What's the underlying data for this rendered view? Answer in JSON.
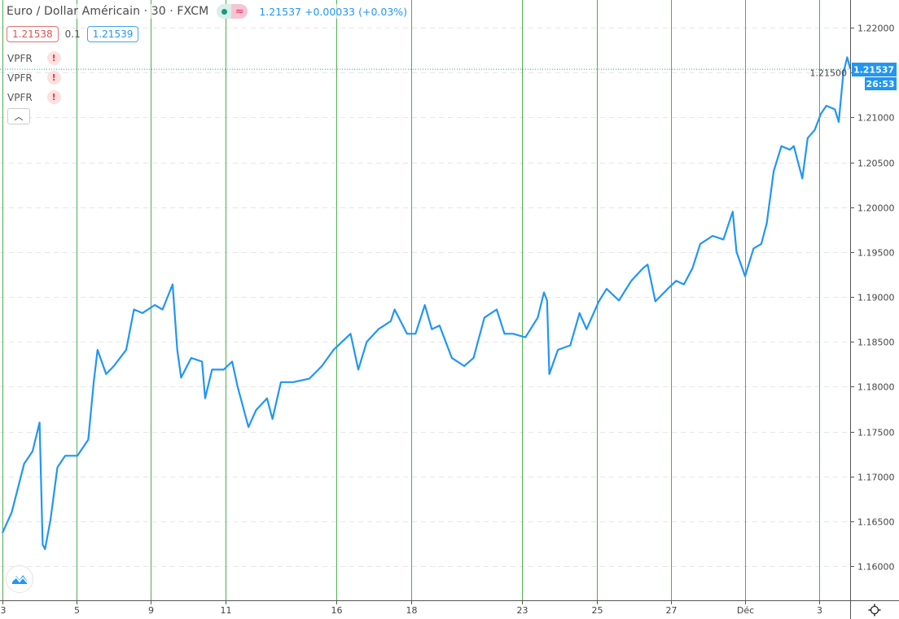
{
  "legend": {
    "title": "Euro / Dollar Américain · 30 · FXCM",
    "status_icon": "market-open-dot",
    "delay_icon": "approx-wave-icon",
    "last": "1.21537",
    "change": "+0.00033 (+0.03%)"
  },
  "quotes": {
    "sell": "1.21538",
    "spread": "0.1",
    "buy": "1.21539"
  },
  "indicators": [
    {
      "name": "VPFR",
      "error": "!"
    },
    {
      "name": "VPFR",
      "error": "!"
    },
    {
      "name": "VPFR",
      "error": "!"
    }
  ],
  "collapse_icon": "chevron-up-icon",
  "last_price_label": "1.21537",
  "countdown": "26:53",
  "colors": {
    "line": "#2196f3",
    "session_lines": "#4caf50",
    "grid": "#e6e6e6",
    "sell": "#e05252",
    "buy": "#2196f3"
  },
  "chart_data": {
    "type": "line",
    "title": "",
    "xlabel": "",
    "ylabel": "",
    "ylim": [
      1.1555,
      1.2225
    ],
    "grid": true,
    "y_ticks": [
      "1.22000",
      "1.21500",
      "1.21000",
      "1.20500",
      "1.20000",
      "1.19500",
      "1.19000",
      "1.18500",
      "1.18000",
      "1.17500",
      "1.17000",
      "1.16500",
      "1.16000"
    ],
    "x_ticks": [
      "3",
      "5",
      "9",
      "11",
      "16",
      "18",
      "23",
      "25",
      "27",
      "Déc",
      "3"
    ],
    "x_tick_dates": [
      "11-03",
      "11-05",
      "11-09",
      "11-11",
      "11-16",
      "11-18",
      "11-23",
      "11-25",
      "11-27",
      "12-01",
      "12-03"
    ],
    "series": [
      {
        "points": [
          [
            "11-03 00:00",
            1.1637
          ],
          [
            "11-03 06:00",
            1.166
          ],
          [
            "11-03 14:00",
            1.1714
          ],
          [
            "11-03 19:30",
            1.1728
          ],
          [
            "11-04 00:00",
            1.176
          ],
          [
            "11-04 02:00",
            1.1624
          ],
          [
            "11-04 03:30",
            1.1619
          ],
          [
            "11-04 07:00",
            1.1651
          ],
          [
            "11-04 11:30",
            1.171
          ],
          [
            "11-04 16:30",
            1.1723
          ],
          [
            "11-05 00:30",
            1.1723
          ],
          [
            "11-05 07:30",
            1.1741
          ],
          [
            "11-05 11:00",
            1.1805
          ],
          [
            "11-05 13:30",
            1.1841
          ],
          [
            "11-05 19:00",
            1.1814
          ],
          [
            "11-06 00:00",
            1.1823
          ],
          [
            "11-06 08:00",
            1.1841
          ],
          [
            "11-06 13:00",
            1.1886
          ],
          [
            "11-06 18:30",
            1.1882
          ],
          [
            "11-09 02:30",
            1.1891
          ],
          [
            "11-09 07:30",
            1.1886
          ],
          [
            "11-09 14:00",
            1.1914
          ],
          [
            "11-09 17:00",
            1.1841
          ],
          [
            "11-09 19:30",
            1.181
          ],
          [
            "11-10 02:00",
            1.1832
          ],
          [
            "11-10 09:00",
            1.1828
          ],
          [
            "11-10 11:00",
            1.1787
          ],
          [
            "11-10 15:30",
            1.1819
          ],
          [
            "11-10 23:00",
            1.1819
          ],
          [
            "11-11 04:30",
            1.1828
          ],
          [
            "11-11 08:00",
            1.18
          ],
          [
            "11-11 15:00",
            1.1755
          ],
          [
            "11-11 20:00",
            1.1774
          ],
          [
            "11-12 03:00",
            1.1787
          ],
          [
            "11-12 06:30",
            1.1764
          ],
          [
            "11-12 12:00",
            1.1805
          ],
          [
            "11-12 20:00",
            1.1805
          ],
          [
            "11-13 06:30",
            1.1809
          ],
          [
            "11-13 14:30",
            1.1823
          ],
          [
            "11-13 22:00",
            1.1841
          ],
          [
            "11-16 09:00",
            1.1859
          ],
          [
            "11-16 14:00",
            1.1819
          ],
          [
            "11-16 19:30",
            1.185
          ],
          [
            "11-17 03:00",
            1.1864
          ],
          [
            "11-17 11:00",
            1.1873
          ],
          [
            "11-17 13:30",
            1.1886
          ],
          [
            "11-17 21:30",
            1.1859
          ],
          [
            "11-18 03:00",
            1.1859
          ],
          [
            "11-18 09:00",
            1.1891
          ],
          [
            "11-18 13:30",
            1.1864
          ],
          [
            "11-18 18:30",
            1.1868
          ],
          [
            "11-19 02:30",
            1.1832
          ],
          [
            "11-19 10:30",
            1.1823
          ],
          [
            "11-19 16:30",
            1.1832
          ],
          [
            "11-19 23:30",
            1.1877
          ],
          [
            "11-20 07:30",
            1.1886
          ],
          [
            "11-20 12:30",
            1.1859
          ],
          [
            "11-20 18:00",
            1.1859
          ],
          [
            "11-23 02:00",
            1.1855
          ],
          [
            "11-23 10:00",
            1.1877
          ],
          [
            "11-23 14:00",
            1.1905
          ],
          [
            "11-23 16:00",
            1.1896
          ],
          [
            "11-23 17:30",
            1.1814
          ],
          [
            "11-23 23:00",
            1.1841
          ],
          [
            "11-24 07:00",
            1.1846
          ],
          [
            "11-24 13:00",
            1.1882
          ],
          [
            "11-24 17:30",
            1.1864
          ],
          [
            "11-25 01:30",
            1.1895
          ],
          [
            "11-25 06:30",
            1.1909
          ],
          [
            "11-25 14:30",
            1.1896
          ],
          [
            "11-25 22:30",
            1.1918
          ],
          [
            "11-26 06:00",
            1.1932
          ],
          [
            "11-26 09:00",
            1.1936
          ],
          [
            "11-26 14:00",
            1.1895
          ],
          [
            "11-26 22:00",
            1.1909
          ],
          [
            "11-27 03:30",
            1.1918
          ],
          [
            "11-27 08:30",
            1.1914
          ],
          [
            "11-27 14:00",
            1.1932
          ],
          [
            "11-27 19:00",
            1.1959
          ],
          [
            "11-30 03:00",
            1.1968
          ],
          [
            "11-30 10:00",
            1.1964
          ],
          [
            "11-30 16:00",
            1.1995
          ],
          [
            "11-30 18:30",
            1.195
          ],
          [
            "12-01 00:00",
            1.1923
          ],
          [
            "12-01 05:30",
            1.1954
          ],
          [
            "12-01 10:30",
            1.1959
          ],
          [
            "12-01 14:00",
            1.1982
          ],
          [
            "12-01 18:30",
            1.204
          ],
          [
            "12-01 23:30",
            1.2068
          ],
          [
            "12-02 05:00",
            1.2064
          ],
          [
            "12-02 07:30",
            1.2068
          ],
          [
            "12-02 13:00",
            1.2032
          ],
          [
            "12-02 16:30",
            1.2077
          ],
          [
            "12-02 21:00",
            1.2086
          ],
          [
            "12-03 01:00",
            1.2104
          ],
          [
            "12-03 04:30",
            1.2113
          ],
          [
            "12-03 10:00",
            1.2109
          ],
          [
            "12-03 12:30",
            1.2095
          ],
          [
            "12-03 15:30",
            1.2149
          ],
          [
            "12-03 18:00",
            1.2167
          ],
          [
            "12-03 20:00",
            1.2154
          ]
        ]
      }
    ],
    "last_value": 1.21537
  }
}
